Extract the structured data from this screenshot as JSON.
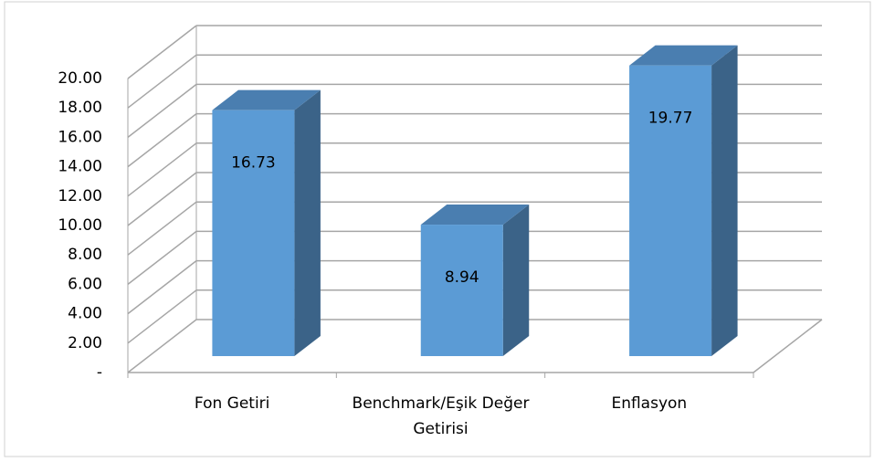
{
  "chart_data": {
    "type": "bar3d",
    "categories": [
      "Fon Getiri",
      "Benchmark/Eşik Değer Getirisi",
      "Enflasyon"
    ],
    "values": [
      16.73,
      8.94,
      19.77
    ],
    "color": "#5b9bd5",
    "ylim": [
      0,
      20
    ],
    "yticks": [
      {
        "value": 0,
        "label": "-"
      },
      {
        "value": 2,
        "label": "2.00"
      },
      {
        "value": 4,
        "label": "4.00"
      },
      {
        "value": 6,
        "label": "6.00"
      },
      {
        "value": 8,
        "label": "8.00"
      },
      {
        "value": 10,
        "label": "10.00"
      },
      {
        "value": 12,
        "label": "12.00"
      },
      {
        "value": 14,
        "label": "14.00"
      },
      {
        "value": 16,
        "label": "16.00"
      },
      {
        "value": 18,
        "label": "18.00"
      },
      {
        "value": 20,
        "label": "20.00"
      }
    ],
    "grid": true
  }
}
